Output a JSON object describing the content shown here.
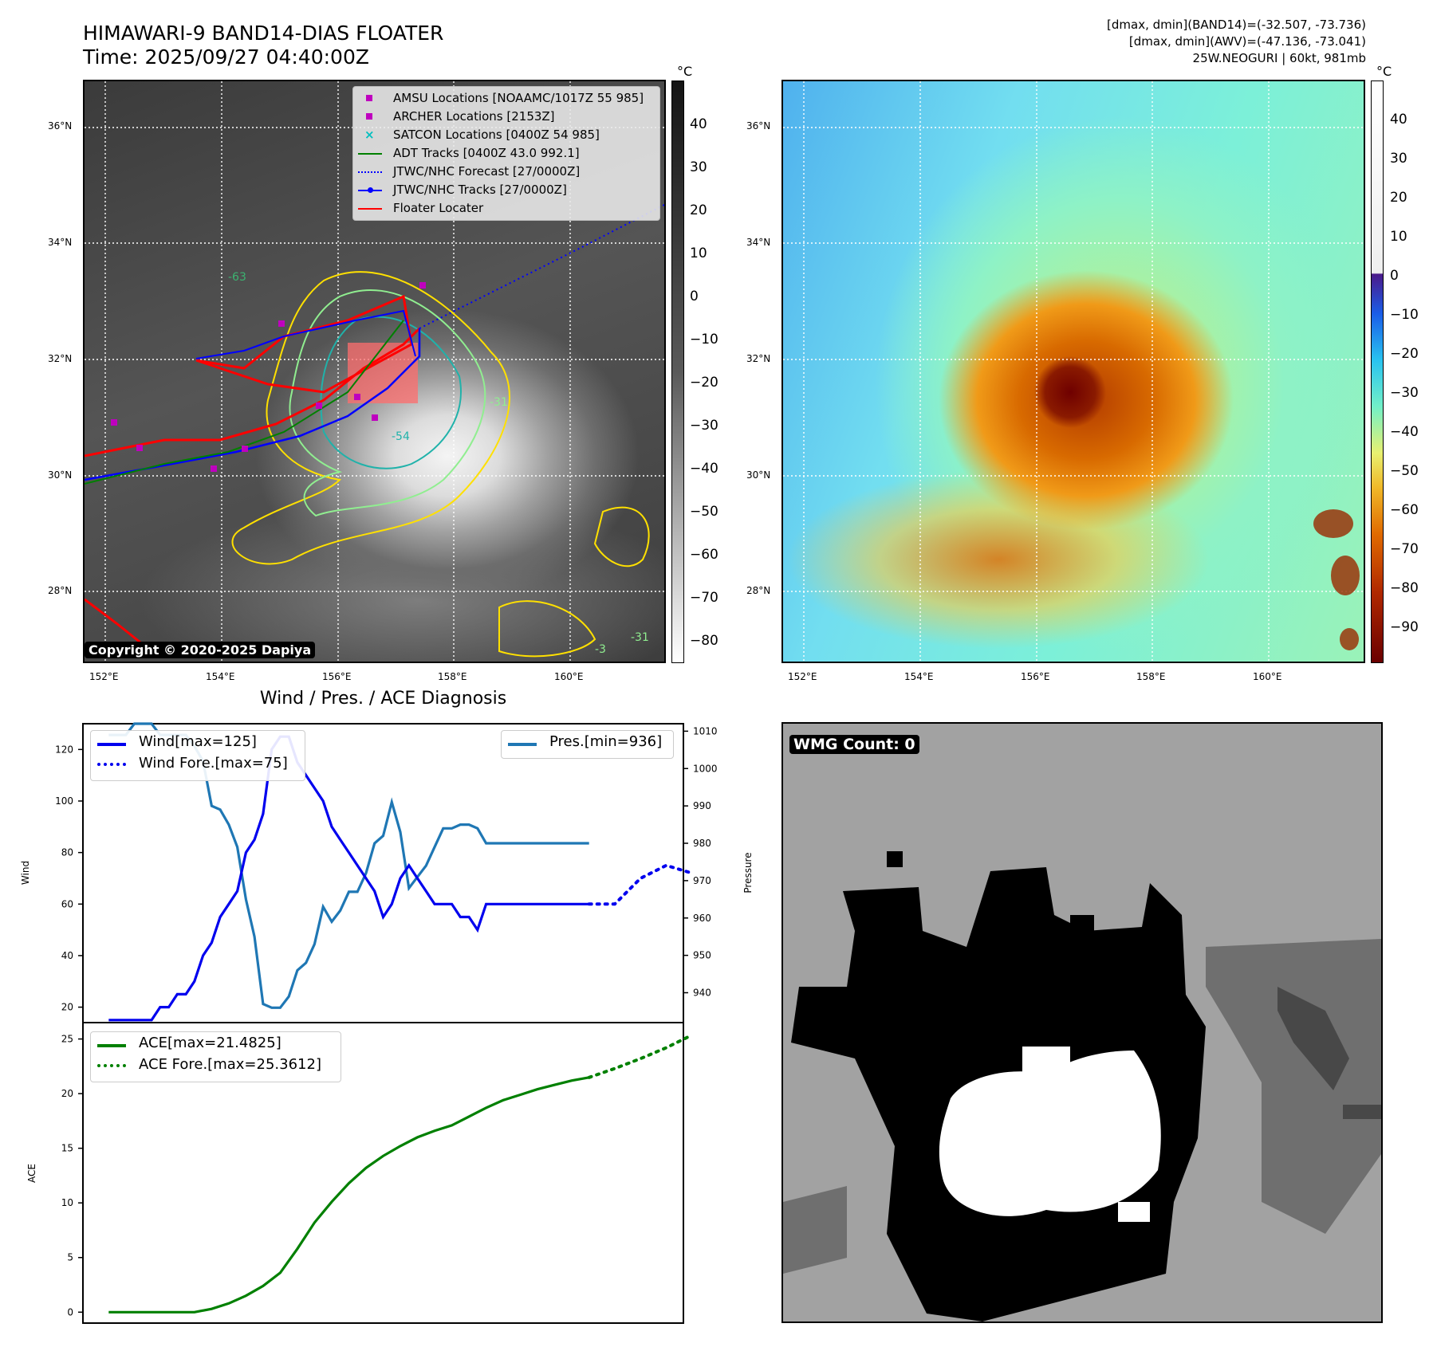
{
  "header": {
    "title_line1": "HIMAWARI-9 BAND14-DIAS FLOATER",
    "title_line2": "Time: 2025/09/27 04:40:00Z",
    "info_line1": "[dmax, dmin](BAND14)=(-32.507, -73.736)",
    "info_line2": "[dmax, dmin](AWV)=(-47.136, -73.041)",
    "info_line3": "25W.NEOGURI | 60kt, 981mb"
  },
  "ir_map": {
    "lat_labels": [
      "36°N",
      "34°N",
      "32°N",
      "30°N",
      "28°N"
    ],
    "lon_labels": [
      "152°E",
      "154°E",
      "156°E",
      "158°E",
      "160°E"
    ],
    "copyright": "Copyright © 2020-2025 Dapiya",
    "legend": [
      {
        "label": "AMSU Locations [NOAAMC/1017Z 55 985]",
        "marker": "square",
        "color": "#bf00bf"
      },
      {
        "label": "ARCHER Locations [2153Z]",
        "marker": "square",
        "color": "#bf00bf"
      },
      {
        "label": "SATCON Locations [0400Z 54 985]",
        "marker": "x",
        "color": "#00bfbf"
      },
      {
        "label": "ADT Tracks [0400Z 43.0 992.1]",
        "marker": "line",
        "color": "#008000"
      },
      {
        "label": "JTWC/NHC Forecast [27/0000Z]",
        "marker": "dotted",
        "color": "#0000ff"
      },
      {
        "label": "JTWC/NHC Tracks [27/0000Z]",
        "marker": "line-dot",
        "color": "#0000ff"
      },
      {
        "label": "Floater Locater",
        "marker": "line",
        "color": "#ff0000"
      }
    ],
    "contour_labels": [
      "-63",
      "-54",
      "-31",
      "-31",
      "-3"
    ],
    "colorbar": {
      "unit": "°C",
      "ticks": [
        "40",
        "30",
        "20",
        "10",
        "0",
        "−10",
        "−20",
        "−30",
        "−40",
        "−50",
        "−60",
        "−70",
        "−80"
      ]
    }
  },
  "awv_map": {
    "lat_labels": [
      "36°N",
      "34°N",
      "32°N",
      "30°N",
      "28°N"
    ],
    "lon_labels": [
      "152°E",
      "154°E",
      "156°E",
      "158°E",
      "160°E"
    ],
    "colorbar": {
      "unit": "°C",
      "ticks": [
        "40",
        "30",
        "20",
        "10",
        "0",
        "−10",
        "−20",
        "−30",
        "−40",
        "−50",
        "−60",
        "−70",
        "−80",
        "−90"
      ]
    }
  },
  "diagnosis": {
    "title": "Wind / Pres. / ACE Diagnosis",
    "wind_ylabel": "Wind",
    "pres_ylabel": "Pressure",
    "ace_ylabel": "ACE",
    "legend_wind": "Wind[max=125]",
    "legend_wind_fore": "Wind Fore.[max=75]",
    "legend_pres": "Pres.[min=936]",
    "legend_ace": "ACE[max=21.4825]",
    "legend_ace_fore": "ACE Fore.[max=25.3612]",
    "colors": {
      "wind": "#0000ee",
      "pres": "#1f77b4",
      "ace": "#008000"
    }
  },
  "chart_data": [
    {
      "type": "line",
      "title": "Wind / Pres. / ACE Diagnosis",
      "ylabel": "Wind",
      "ylim": [
        14,
        130
      ],
      "yticks": [
        20,
        40,
        60,
        80,
        100,
        120
      ],
      "xlim": [
        -3,
        67
      ],
      "series": [
        {
          "name": "Wind[max=125]",
          "axis": "left",
          "style": "solid",
          "x": [
            0,
            1,
            2,
            3,
            4,
            5,
            6,
            7,
            8,
            9,
            10,
            11,
            12,
            13,
            14,
            15,
            16,
            17,
            18,
            19,
            20,
            21,
            22,
            23,
            24,
            25,
            26,
            27,
            28,
            29,
            30,
            31,
            32,
            33,
            34,
            35,
            36,
            37,
            38,
            39,
            40,
            41,
            42,
            43,
            44,
            45,
            46,
            47,
            48,
            49,
            50,
            51,
            52,
            53,
            54,
            55,
            56
          ],
          "y": [
            15,
            15,
            15,
            15,
            15,
            15,
            20,
            20,
            25,
            25,
            30,
            40,
            45,
            55,
            60,
            65,
            80,
            85,
            95,
            120,
            125,
            125,
            115,
            110,
            105,
            100,
            90,
            85,
            80,
            75,
            70,
            65,
            55,
            60,
            70,
            75,
            70,
            65,
            60,
            60,
            60,
            55,
            55,
            50,
            60,
            60,
            60,
            60,
            60,
            60,
            60,
            60,
            60,
            60,
            60,
            60,
            60
          ]
        },
        {
          "name": "Wind Fore.[max=75]",
          "axis": "left",
          "style": "dotted",
          "x": [
            56,
            59,
            62,
            65,
            68
          ],
          "y": [
            60,
            60,
            70,
            75,
            72
          ]
        },
        {
          "name": "Pres.[min=936]",
          "axis": "right",
          "style": "solid",
          "ylim": [
            932,
            1012
          ],
          "yticks": [
            940,
            950,
            960,
            970,
            980,
            990,
            1000,
            1010
          ],
          "x": [
            0,
            1,
            2,
            3,
            4,
            5,
            6,
            7,
            8,
            9,
            10,
            11,
            12,
            13,
            14,
            15,
            16,
            17,
            18,
            19,
            20,
            21,
            22,
            23,
            24,
            25,
            26,
            27,
            28,
            29,
            30,
            31,
            32,
            33,
            34,
            35,
            36,
            37,
            38,
            39,
            40,
            41,
            42,
            43,
            44,
            45,
            46,
            47,
            48,
            49,
            50,
            51,
            52,
            53,
            54,
            55,
            56
          ],
          "y": [
            1009,
            1009,
            1009,
            1012,
            1012,
            1012,
            1009,
            1009,
            1009,
            1009,
            1006,
            1002,
            990,
            989,
            985,
            979,
            965,
            955,
            937,
            936,
            936,
            939,
            946,
            948,
            953,
            963,
            959,
            962,
            967,
            967,
            972,
            980,
            982,
            991,
            983,
            968,
            971,
            974,
            979,
            984,
            984,
            985,
            985,
            984,
            980,
            980,
            980,
            980,
            980,
            980,
            980,
            980,
            980,
            980,
            980,
            980,
            980
          ]
        }
      ]
    },
    {
      "type": "line",
      "ylabel": "ACE",
      "ylim": [
        -1,
        26.5
      ],
      "yticks": [
        0,
        5,
        10,
        15,
        20,
        25
      ],
      "xlim": [
        -3,
        67
      ],
      "series": [
        {
          "name": "ACE[max=21.4825]",
          "style": "solid",
          "x": [
            0,
            2,
            4,
            6,
            8,
            10,
            12,
            14,
            16,
            18,
            20,
            22,
            24,
            26,
            28,
            30,
            32,
            34,
            36,
            38,
            40,
            42,
            44,
            46,
            48,
            50,
            52,
            54,
            56
          ],
          "y": [
            0,
            0,
            0,
            0,
            0,
            0,
            0.3,
            0.8,
            1.5,
            2.4,
            3.6,
            5.8,
            8.2,
            10.1,
            11.8,
            13.2,
            14.3,
            15.2,
            16.0,
            16.6,
            17.1,
            17.9,
            18.7,
            19.4,
            19.9,
            20.4,
            20.8,
            21.2,
            21.48
          ]
        },
        {
          "name": "ACE Fore.[max=25.3612]",
          "style": "dotted",
          "x": [
            56,
            59,
            62,
            65,
            68
          ],
          "y": [
            21.48,
            22.3,
            23.2,
            24.2,
            25.36
          ]
        }
      ]
    }
  ],
  "wmg": {
    "badge": "WMG Count: 0"
  }
}
